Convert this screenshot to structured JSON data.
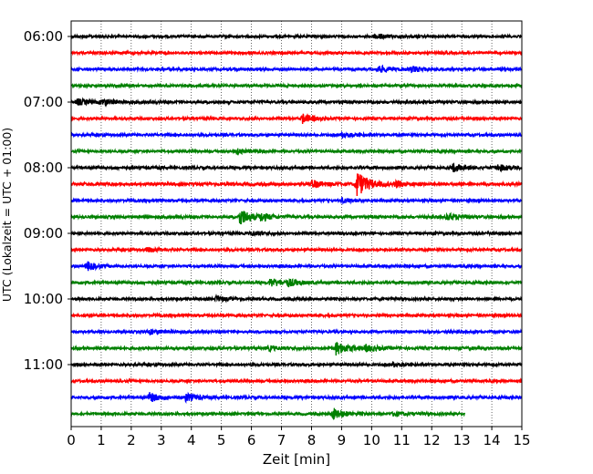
{
  "chart_data": {
    "type": "line",
    "title": "",
    "xlabel": "Zeit  [min]",
    "ylabel": "UTC (Lokalzeit = UTC + 01:00)",
    "xlim": [
      0,
      15
    ],
    "x_ticks": [
      "0",
      "1",
      "2",
      "3",
      "4",
      "5",
      "6",
      "7",
      "8",
      "9",
      "10",
      "11",
      "12",
      "13",
      "14",
      "15"
    ],
    "y_ticks": [
      "06:00",
      "07:00",
      "08:00",
      "09:00",
      "10:00",
      "11:00"
    ],
    "grid_x": true,
    "trace_interval_min": 15,
    "trace_colors": [
      "#000000",
      "#ff0000",
      "#0000ff",
      "#008000"
    ],
    "traces": [
      {
        "start": "06:00",
        "end_min": 15,
        "noise": 0.8,
        "events": [
          {
            "t": 10.1,
            "amp": 2.0
          }
        ]
      },
      {
        "start": "06:15",
        "end_min": 15,
        "noise": 0.8,
        "events": []
      },
      {
        "start": "06:30",
        "end_min": 15,
        "noise": 0.8,
        "events": [
          {
            "t": 10.2,
            "amp": 2.5
          },
          {
            "t": 11.3,
            "amp": 2.0
          }
        ]
      },
      {
        "start": "06:45",
        "end_min": 15,
        "noise": 0.8,
        "events": []
      },
      {
        "start": "07:00",
        "end_min": 15,
        "noise": 0.9,
        "events": [
          {
            "t": 0.2,
            "amp": 2.0
          },
          {
            "t": 1.0,
            "amp": 2.0
          }
        ]
      },
      {
        "start": "07:15",
        "end_min": 15,
        "noise": 0.8,
        "events": [
          {
            "t": 7.7,
            "amp": 3.0
          }
        ]
      },
      {
        "start": "07:30",
        "end_min": 15,
        "noise": 0.8,
        "events": [
          {
            "t": 9.0,
            "amp": 2.0
          }
        ]
      },
      {
        "start": "07:45",
        "end_min": 15,
        "noise": 0.8,
        "events": [
          {
            "t": 5.5,
            "amp": 1.5
          }
        ]
      },
      {
        "start": "08:00",
        "end_min": 15,
        "noise": 0.9,
        "events": [
          {
            "t": 12.7,
            "amp": 2.5
          },
          {
            "t": 14.2,
            "amp": 2.0
          }
        ]
      },
      {
        "start": "08:15",
        "end_min": 15,
        "noise": 1.0,
        "events": [
          {
            "t": 9.5,
            "amp": 9.0
          },
          {
            "t": 8.0,
            "amp": 2.5
          },
          {
            "t": 10.8,
            "amp": 2.0
          }
        ]
      },
      {
        "start": "08:30",
        "end_min": 15,
        "noise": 0.8,
        "events": [
          {
            "t": 9.0,
            "amp": 1.5
          }
        ]
      },
      {
        "start": "08:45",
        "end_min": 15,
        "noise": 0.9,
        "events": [
          {
            "t": 5.6,
            "amp": 6.0
          },
          {
            "t": 6.3,
            "amp": 2.0
          },
          {
            "t": 12.5,
            "amp": 2.5
          }
        ]
      },
      {
        "start": "09:00",
        "end_min": 15,
        "noise": 0.8,
        "events": [
          {
            "t": 6.0,
            "amp": 1.5
          }
        ]
      },
      {
        "start": "09:15",
        "end_min": 15,
        "noise": 0.8,
        "events": [
          {
            "t": 2.5,
            "amp": 1.5
          }
        ]
      },
      {
        "start": "09:30",
        "end_min": 15,
        "noise": 0.8,
        "events": [
          {
            "t": 0.5,
            "amp": 3.0
          }
        ]
      },
      {
        "start": "09:45",
        "end_min": 15,
        "noise": 0.9,
        "events": [
          {
            "t": 6.6,
            "amp": 3.0
          },
          {
            "t": 7.2,
            "amp": 2.0
          }
        ]
      },
      {
        "start": "10:00",
        "end_min": 15,
        "noise": 0.8,
        "events": [
          {
            "t": 4.8,
            "amp": 2.0
          }
        ]
      },
      {
        "start": "10:15",
        "end_min": 15,
        "noise": 0.8,
        "events": []
      },
      {
        "start": "10:30",
        "end_min": 15,
        "noise": 0.8,
        "events": [
          {
            "t": 2.6,
            "amp": 1.5
          }
        ]
      },
      {
        "start": "10:45",
        "end_min": 15,
        "noise": 0.9,
        "events": [
          {
            "t": 8.8,
            "amp": 4.5
          },
          {
            "t": 6.5,
            "amp": 1.5
          },
          {
            "t": 9.8,
            "amp": 2.0
          }
        ]
      },
      {
        "start": "11:00",
        "end_min": 15,
        "noise": 0.8,
        "events": [
          {
            "t": 10.7,
            "amp": 1.5
          }
        ]
      },
      {
        "start": "11:15",
        "end_min": 15,
        "noise": 0.8,
        "events": []
      },
      {
        "start": "11:30",
        "end_min": 15,
        "noise": 0.9,
        "events": [
          {
            "t": 2.6,
            "amp": 3.0
          },
          {
            "t": 3.8,
            "amp": 2.5
          }
        ]
      },
      {
        "start": "11:45",
        "end_min": 13.1,
        "noise": 0.8,
        "events": [
          {
            "t": 8.7,
            "amp": 4.0
          },
          {
            "t": 10.7,
            "amp": 1.5
          }
        ]
      }
    ]
  }
}
